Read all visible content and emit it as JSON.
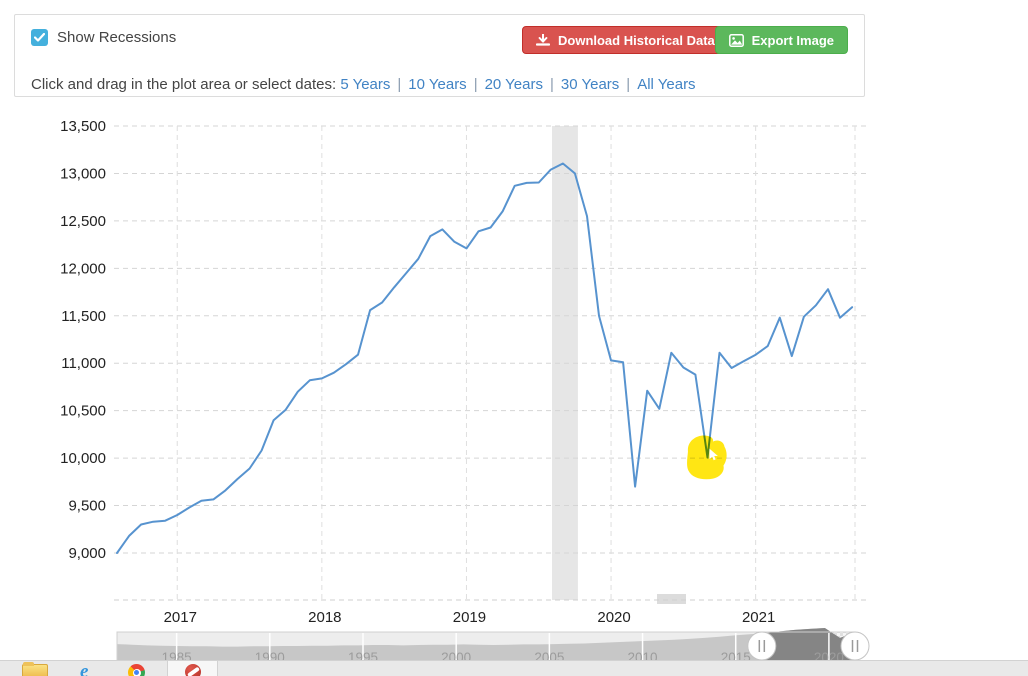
{
  "controls": {
    "show_recessions": {
      "label": "Show Recessions",
      "checked": true
    },
    "buttons": [
      {
        "label": "Download Historical Data",
        "icon": "download-icon"
      },
      {
        "label": "Export Image",
        "icon": "image-icon"
      }
    ],
    "range_prompt": "Click and drag in the plot area or select dates:",
    "range_links": [
      "5 Years",
      "10 Years",
      "20 Years",
      "30 Years",
      "All Years"
    ],
    "link_separator": "|"
  },
  "colors": {
    "line": "#5793cf",
    "recession_band": "#e6e6e6",
    "grid": "#d5d5d5",
    "axis_text": "#222222",
    "download_button_bg": "#d9534f",
    "export_button_bg": "#5cb85c",
    "checkbox_bg": "#44b0dd",
    "link": "#4183c4",
    "highlight": "#ffe400",
    "nav_bg": "#ededed",
    "nav_area_unselected": "#c7c7c7",
    "nav_area_selected": "#858585",
    "nav_label": "#9c9c9c"
  },
  "chart_data": {
    "type": "line",
    "frequency": "monthly",
    "start_month": "2016-08",
    "values": [
      9000,
      9180,
      9300,
      9330,
      9340,
      9400,
      9480,
      9550,
      9565,
      9660,
      9780,
      9890,
      10080,
      10400,
      10510,
      10700,
      10820,
      10840,
      10900,
      10990,
      11090,
      11560,
      11640,
      11800,
      11950,
      12100,
      12340,
      12410,
      12280,
      12210,
      12390,
      12430,
      12600,
      12870,
      12900,
      12905,
      13040,
      13105,
      13000,
      12550,
      11500,
      11030,
      11010,
      9700,
      10710,
      10520,
      11110,
      10955,
      10880,
      10005,
      11110,
      10950,
      11020,
      11090,
      11180,
      11480,
      11075,
      11490,
      11610,
      11780,
      11480,
      11590
    ],
    "y_ticks": [
      13500,
      13000,
      12500,
      12000,
      11500,
      11000,
      10500,
      10000,
      9500,
      9000
    ],
    "ylim": [
      8500,
      13600
    ],
    "x_tick_labels": [
      "2017",
      "2018",
      "2019",
      "2020",
      "2021"
    ],
    "grid": "dashed",
    "recession_band": {
      "from_index": 36.1,
      "to_index": 38.25
    },
    "highlight_annotation": {
      "index": 49,
      "value": 10005,
      "shape": "scribble-blob",
      "cursor": true
    }
  },
  "navigator": {
    "start_year": 1981.8,
    "end_year": 2021.4,
    "year_labels": [
      "1985",
      "1990",
      "1995",
      "2000",
      "2005",
      "2010",
      "2015",
      "2020"
    ],
    "selection": {
      "from_year": 2016.4,
      "to_year": 2021.4
    },
    "area_values": [
      0.48,
      0.46,
      0.44,
      0.43,
      0.42,
      0.41,
      0.41,
      0.4,
      0.4,
      0.41,
      0.41,
      0.42,
      0.42,
      0.43,
      0.43,
      0.44,
      0.44,
      0.45,
      0.45,
      0.44,
      0.45,
      0.46,
      0.46,
      0.47,
      0.46,
      0.45,
      0.46,
      0.47,
      0.47,
      0.48,
      0.49,
      0.5,
      0.52,
      0.54,
      0.56,
      0.58,
      0.6,
      0.62,
      0.65,
      0.68,
      0.72,
      0.76,
      0.8,
      0.83,
      0.89,
      0.94,
      0.97,
      1.0,
      0.68,
      0.85
    ]
  },
  "taskbar": {
    "icons": [
      "folder-icon",
      "internet-explorer-icon",
      "chrome-icon",
      "red-app-icon"
    ]
  }
}
